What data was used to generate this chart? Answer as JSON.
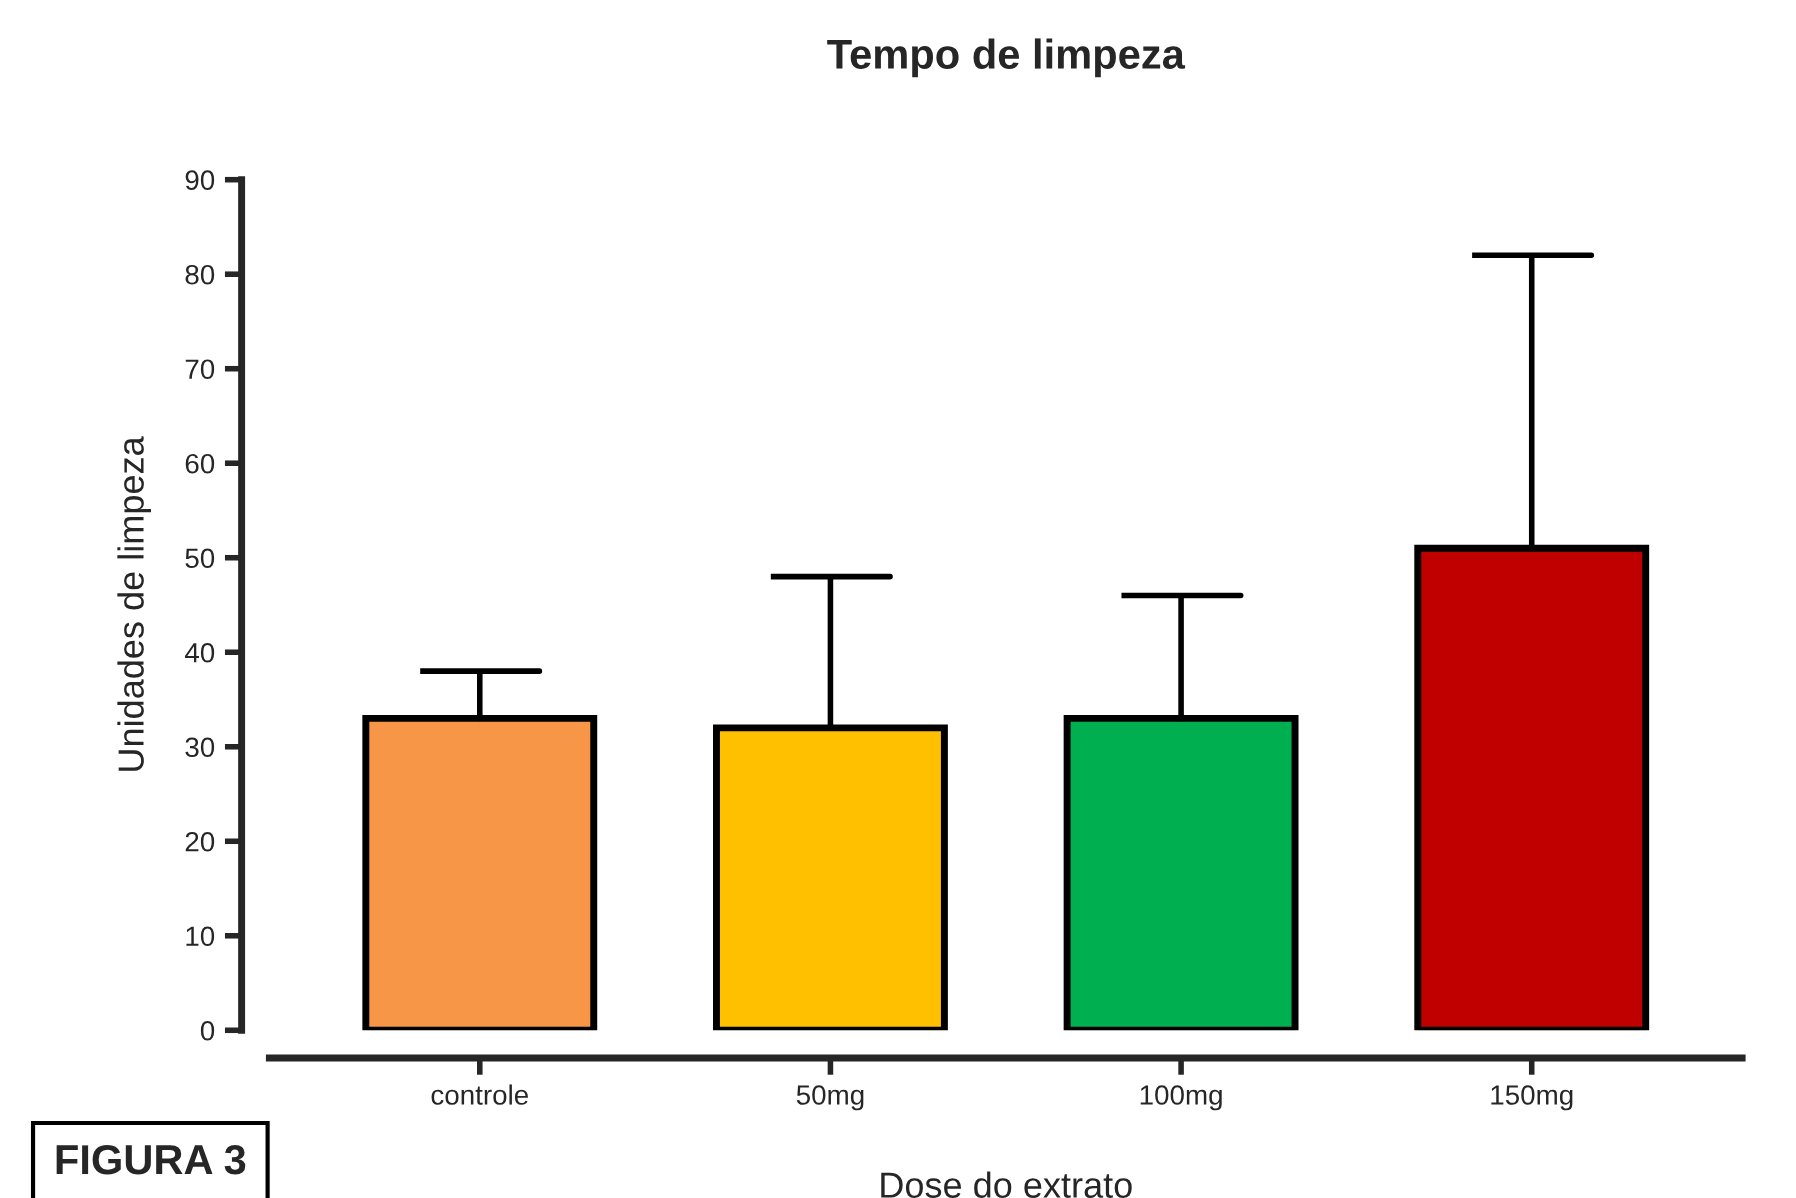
{
  "chart_data": {
    "type": "bar",
    "title": "Tempo de limpeza",
    "xlabel": "Dose do extrato",
    "ylabel": "Unidades de limpeza",
    "categories": [
      "controle",
      "50mg",
      "100mg",
      "150mg"
    ],
    "values": [
      33,
      32,
      33,
      51
    ],
    "colors": [
      "#f79646",
      "#ffc000",
      "#00b050",
      "#c00000"
    ],
    "errors": [
      [
        33,
        38
      ],
      [
        32,
        48
      ],
      [
        33,
        46
      ],
      [
        51,
        82
      ]
    ],
    "ylim": [
      0,
      90
    ],
    "yticks": [
      0,
      10,
      20,
      30,
      40,
      50,
      60,
      70,
      80,
      90
    ],
    "grid": false,
    "legend": false,
    "annotations": [
      "FIGURA 3"
    ]
  }
}
